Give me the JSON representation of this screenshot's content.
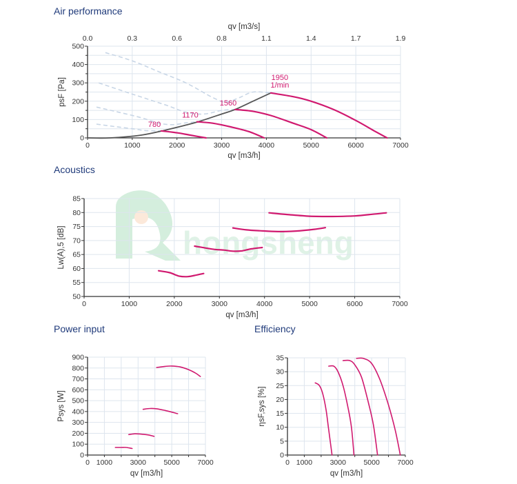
{
  "sections": {
    "air": "Air performance",
    "acoustics": "Acoustics",
    "power": "Power input",
    "efficiency": "Efficiency"
  },
  "watermark": "hongsheng",
  "colors": {
    "curve": "#d0196f",
    "system": "#555555",
    "dashed": "#c8d6e6",
    "grid": "#dde5ee",
    "title": "#1f3a7a"
  },
  "chart_data": [
    {
      "id": "air",
      "type": "line",
      "title": "Air performance",
      "xlabel": "qv [m3/h]",
      "x2label": "qv [m3/s]",
      "ylabel": "psF [Pa]",
      "xlim": [
        0,
        7000
      ],
      "ylim": [
        0,
        500
      ],
      "xticks": [
        0,
        1000,
        2000,
        3000,
        4000,
        5000,
        6000,
        7000
      ],
      "yticks": [
        0,
        100,
        200,
        300,
        400,
        500
      ],
      "x2ticks": [
        "0.0",
        "0.3",
        "0.6",
        "0.8",
        "1.1",
        "1.4",
        "1.7",
        "1.9"
      ],
      "grid": true,
      "series": [
        {
          "name": "780",
          "label": "780",
          "points": [
            [
              1650,
              38
            ],
            [
              2000,
              28
            ],
            [
              2300,
              15
            ],
            [
              2650,
              0
            ]
          ]
        },
        {
          "name": "1170",
          "label": "1170",
          "points": [
            [
              2450,
              88
            ],
            [
              2800,
              80
            ],
            [
              3200,
              60
            ],
            [
              3600,
              35
            ],
            [
              3950,
              0
            ]
          ]
        },
        {
          "name": "1560",
          "label": "1560",
          "points": [
            [
              3300,
              155
            ],
            [
              3700,
              145
            ],
            [
              4100,
              122
            ],
            [
              4600,
              80
            ],
            [
              5000,
              45
            ],
            [
              5350,
              0
            ]
          ]
        },
        {
          "name": "1950",
          "label": "1950",
          "label2": "1/min",
          "points": [
            [
              4100,
              245
            ],
            [
              4600,
              225
            ],
            [
              5000,
              200
            ],
            [
              5500,
              155
            ],
            [
              6000,
              95
            ],
            [
              6400,
              40
            ],
            [
              6700,
              0
            ]
          ]
        }
      ],
      "system_curve": {
        "name": "system",
        "points": [
          [
            0,
            0
          ],
          [
            500,
            0
          ],
          [
            1200,
            15
          ],
          [
            1700,
            40
          ],
          [
            2200,
            70
          ],
          [
            2500,
            90
          ],
          [
            3000,
            130
          ],
          [
            3300,
            155
          ],
          [
            3700,
            200
          ],
          [
            4100,
            245
          ]
        ]
      },
      "dashed_curves": [
        {
          "name": "780-ext",
          "points": [
            [
              200,
              75
            ],
            [
              600,
              62
            ],
            [
              1000,
              50
            ],
            [
              1300,
              40
            ],
            [
              1650,
              38
            ]
          ]
        },
        {
          "name": "1170-ext",
          "points": [
            [
              200,
              168
            ],
            [
              700,
              140
            ],
            [
              1200,
              110
            ],
            [
              1600,
              80
            ],
            [
              1900,
              72
            ],
            [
              2200,
              82
            ],
            [
              2450,
              88
            ]
          ]
        },
        {
          "name": "1560-ext",
          "points": [
            [
              250,
              300
            ],
            [
              800,
              255
            ],
            [
              1300,
              215
            ],
            [
              1800,
              175
            ],
            [
              2200,
              140
            ],
            [
              2600,
              130
            ],
            [
              3000,
              150
            ],
            [
              3300,
              155
            ]
          ]
        },
        {
          "name": "1950-ext",
          "points": [
            [
              400,
              465
            ],
            [
              1000,
              420
            ],
            [
              1600,
              360
            ],
            [
              2200,
              300
            ],
            [
              2800,
              220
            ],
            [
              3100,
              195
            ],
            [
              3400,
              220
            ],
            [
              3700,
              250
            ],
            [
              4100,
              245
            ]
          ]
        }
      ]
    },
    {
      "id": "acoustics",
      "type": "line",
      "title": "Acoustics",
      "xlabel": "qv [m3/h]",
      "ylabel": "Lw(A),5 [dB]",
      "xlim": [
        0,
        7000
      ],
      "ylim": [
        50,
        85
      ],
      "xticks": [
        0,
        1000,
        2000,
        3000,
        4000,
        5000,
        6000,
        7000
      ],
      "yticks": [
        50,
        55,
        60,
        65,
        70,
        75,
        80,
        85
      ],
      "grid": true,
      "series": [
        {
          "name": "780",
          "points": [
            [
              1650,
              59.2
            ],
            [
              1900,
              58.5
            ],
            [
              2100,
              57.3
            ],
            [
              2300,
              57.1
            ],
            [
              2500,
              57.7
            ],
            [
              2650,
              58.2
            ]
          ]
        },
        {
          "name": "1170",
          "points": [
            [
              2450,
              68.0
            ],
            [
              2700,
              67.3
            ],
            [
              2900,
              66.8
            ],
            [
              3100,
              66.6
            ],
            [
              3300,
              66.2
            ],
            [
              3500,
              66.3
            ],
            [
              3700,
              67.0
            ],
            [
              3950,
              67.5
            ]
          ]
        },
        {
          "name": "1560",
          "points": [
            [
              3300,
              74.5
            ],
            [
              3600,
              73.8
            ],
            [
              3900,
              73.5
            ],
            [
              4300,
              73.2
            ],
            [
              4700,
              73.4
            ],
            [
              5100,
              74.0
            ],
            [
              5350,
              74.6
            ]
          ]
        },
        {
          "name": "1950",
          "points": [
            [
              4100,
              79.9
            ],
            [
              4500,
              79.3
            ],
            [
              5000,
              78.7
            ],
            [
              5500,
              78.6
            ],
            [
              6000,
              78.8
            ],
            [
              6400,
              79.4
            ],
            [
              6700,
              79.9
            ]
          ]
        }
      ]
    },
    {
      "id": "power",
      "type": "line",
      "title": "Power input",
      "xlabel": "qv [m3/h]",
      "ylabel": "Psys [W]",
      "xlim": [
        0,
        7000
      ],
      "ylim": [
        0,
        900
      ],
      "xticks": [
        0,
        1000,
        2000,
        3000,
        4000,
        5000,
        6000,
        7000
      ],
      "xticklabels": [
        "0",
        "1000",
        "",
        "3000",
        "",
        "5000",
        "",
        "7000"
      ],
      "yticks": [
        0,
        100,
        200,
        300,
        400,
        500,
        600,
        700,
        800,
        900
      ],
      "grid": true,
      "series": [
        {
          "name": "780",
          "points": [
            [
              1650,
              70
            ],
            [
              2000,
              70
            ],
            [
              2300,
              70
            ],
            [
              2650,
              60
            ]
          ]
        },
        {
          "name": "1170",
          "points": [
            [
              2450,
              188
            ],
            [
              2800,
              195
            ],
            [
              3200,
              192
            ],
            [
              3600,
              185
            ],
            [
              3950,
              172
            ]
          ]
        },
        {
          "name": "1560",
          "points": [
            [
              3300,
              420
            ],
            [
              3700,
              428
            ],
            [
              4100,
              425
            ],
            [
              4600,
              410
            ],
            [
              5000,
              395
            ],
            [
              5350,
              380
            ]
          ]
        },
        {
          "name": "1950",
          "points": [
            [
              4100,
              805
            ],
            [
              4600,
              815
            ],
            [
              5000,
              818
            ],
            [
              5500,
              810
            ],
            [
              6000,
              785
            ],
            [
              6400,
              755
            ],
            [
              6700,
              722
            ]
          ]
        }
      ]
    },
    {
      "id": "efficiency",
      "type": "line",
      "title": "Efficiency",
      "xlabel": "qv [m3/h]",
      "ylabel": "ηsF,sys [%]",
      "xlim": [
        0,
        7000
      ],
      "ylim": [
        0,
        35
      ],
      "xticks": [
        0,
        1000,
        2000,
        3000,
        4000,
        5000,
        6000,
        7000
      ],
      "xticklabels": [
        "0",
        "1000",
        "",
        "3000",
        "",
        "5000",
        "",
        "7000"
      ],
      "yticks": [
        0,
        5,
        10,
        15,
        20,
        25,
        30,
        35
      ],
      "grid": true,
      "series": [
        {
          "name": "780",
          "points": [
            [
              1650,
              26
            ],
            [
              1900,
              25
            ],
            [
              2100,
              22
            ],
            [
              2300,
              16
            ],
            [
              2450,
              9
            ],
            [
              2650,
              0
            ]
          ]
        },
        {
          "name": "1170",
          "points": [
            [
              2450,
              32
            ],
            [
              2750,
              32
            ],
            [
              3000,
              30
            ],
            [
              3300,
              25
            ],
            [
              3600,
              17
            ],
            [
              3800,
              10
            ],
            [
              3950,
              0
            ]
          ]
        },
        {
          "name": "1560",
          "points": [
            [
              3300,
              34
            ],
            [
              3700,
              34
            ],
            [
              4000,
              32.5
            ],
            [
              4400,
              28
            ],
            [
              4800,
              19
            ],
            [
              5100,
              11
            ],
            [
              5350,
              0
            ]
          ]
        },
        {
          "name": "1950",
          "points": [
            [
              4100,
              34.8
            ],
            [
              4500,
              34.8
            ],
            [
              5000,
              33
            ],
            [
              5500,
              27
            ],
            [
              6000,
              18
            ],
            [
              6400,
              9
            ],
            [
              6700,
              0
            ]
          ]
        }
      ]
    }
  ]
}
